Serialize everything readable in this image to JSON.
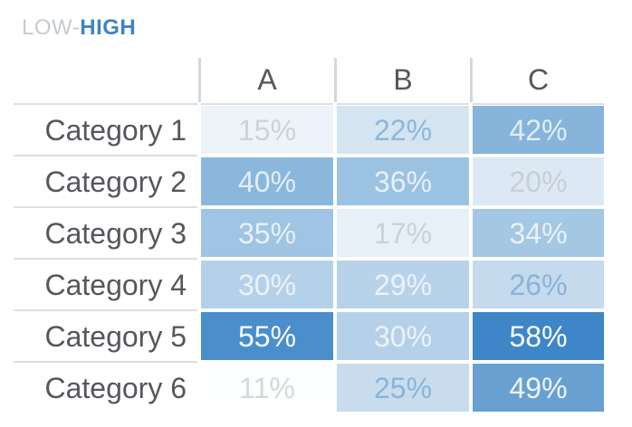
{
  "title": {
    "low": "LOW-",
    "high": "HIGH"
  },
  "accent_color": "#3d85c6",
  "text_colors": {
    "header": "#54575c",
    "row_label": "#54575c",
    "low_value_text": "#cdd2d6",
    "mid_value_text": "#8bb5da",
    "high_value_text": "#f2f7fb"
  },
  "chart_data": {
    "type": "heatmap",
    "title": "LOW-HIGH",
    "legend": "color encodes value: white = low, saturated blue = high",
    "columns": [
      "A",
      "B",
      "C"
    ],
    "rows": [
      "Category 1",
      "Category 2",
      "Category 3",
      "Category 4",
      "Category 5",
      "Category 6"
    ],
    "unit": "%",
    "values": [
      [
        15,
        22,
        42
      ],
      [
        40,
        36,
        20
      ],
      [
        35,
        17,
        34
      ],
      [
        30,
        29,
        26
      ],
      [
        55,
        30,
        58
      ],
      [
        11,
        25,
        49
      ]
    ],
    "color_scale": {
      "low_color": "#ffffff",
      "high_color": "#3d85c6",
      "domain": [
        11,
        58
      ]
    },
    "cells": [
      [
        {
          "text": "15%",
          "bg": "#edf4f9",
          "fg": "#cdd2d6"
        },
        {
          "text": "22%",
          "bg": "#d4e4f1",
          "fg": "#8cb7db"
        },
        {
          "text": "42%",
          "bg": "#86b4db",
          "fg": "#e2edf6"
        }
      ],
      [
        {
          "text": "40%",
          "bg": "#8bb7dd",
          "fg": "#e3eef6"
        },
        {
          "text": "36%",
          "bg": "#9cc2e2",
          "fg": "#e7f0f7"
        },
        {
          "text": "20%",
          "bg": "#dce9f4",
          "fg": "#c8cfd4"
        }
      ],
      [
        {
          "text": "35%",
          "bg": "#a0c4e3",
          "fg": "#e8f1f8"
        },
        {
          "text": "17%",
          "bg": "#e7eff7",
          "fg": "#cbd1d5"
        },
        {
          "text": "34%",
          "bg": "#a4c7e4",
          "fg": "#e9f1f8"
        }
      ],
      [
        {
          "text": "30%",
          "bg": "#b5d1e9",
          "fg": "#ebf3f9"
        },
        {
          "text": "29%",
          "bg": "#b8d2ea",
          "fg": "#ecf4f9"
        },
        {
          "text": "26%",
          "bg": "#c5daed",
          "fg": "#89b3d9"
        }
      ],
      [
        {
          "text": "55%",
          "bg": "#4a8ecb",
          "fg": "#fbfdfe"
        },
        {
          "text": "30%",
          "bg": "#b5d1e9",
          "fg": "#ebf3f9"
        },
        {
          "text": "58%",
          "bg": "#3e86c7",
          "fg": "#fcfdff"
        }
      ],
      [
        {
          "text": "11%",
          "bg": "#fdfefe",
          "fg": "#d5d8da"
        },
        {
          "text": "25%",
          "bg": "#c9dcee",
          "fg": "#8ab4da"
        },
        {
          "text": "49%",
          "bg": "#69a0d2",
          "fg": "#eef5fa"
        }
      ]
    ]
  }
}
